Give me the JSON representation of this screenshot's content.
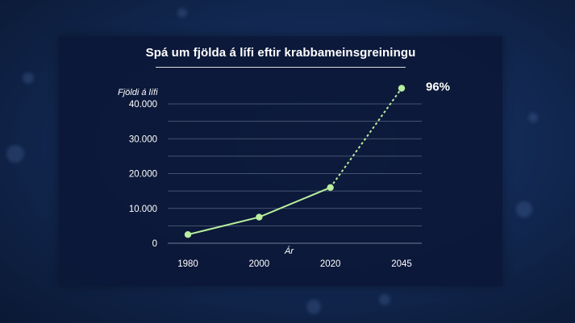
{
  "chart_data": {
    "type": "line",
    "title": "Spá um fjölda á lífi eftir krabbameinsgreiningu",
    "ylabel": "Fjöldi á lífi",
    "xlabel": "Ár",
    "categories": [
      "1980",
      "2000",
      "2020",
      "2045"
    ],
    "x_positions": [
      1980,
      2000,
      2020,
      2040
    ],
    "ylim": [
      0,
      40000
    ],
    "yticks": [
      0,
      10000,
      20000,
      30000,
      40000
    ],
    "ytick_labels": [
      "0",
      "10.000",
      "20.000",
      "30.000",
      "40.000"
    ],
    "grid": true,
    "series": [
      {
        "values": [
          2500,
          7500,
          16000,
          44500
        ],
        "projected_from_index": 2,
        "color": "#b9ee9e"
      }
    ],
    "annotation": {
      "text": "96%",
      "x": 2045
    }
  },
  "colors": {
    "background": "#132a55",
    "panel": "#0c1838",
    "grid": "#8a97b3",
    "line": "#b9ee9e"
  }
}
